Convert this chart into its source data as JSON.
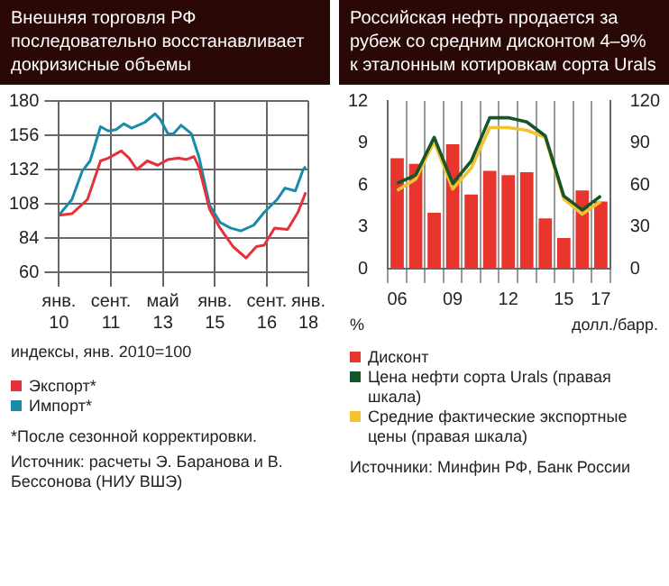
{
  "chart_data": [
    {
      "type": "line",
      "title": "Внешняя торговля РФ последовательно восстанавливает докризисные объемы",
      "annotations": [
        "индексы, янв. 2010=100",
        "*После сезонной корректировки.",
        "Источник: расчеты Э. Баранова и В. Бессонова (НИУ ВШЭ)"
      ],
      "xlim": [
        "2010-01",
        "2018-01"
      ],
      "xticks": [
        {
          "value": "2010-01",
          "label": "янв. 10"
        },
        {
          "value": "2011-09",
          "label": "сент. 11"
        },
        {
          "value": "2013-05",
          "label": "май 13"
        },
        {
          "value": "2015-01",
          "label": "янв. 15"
        },
        {
          "value": "2016-09",
          "label": "сент. 16"
        },
        {
          "value": "2018-01",
          "label": "янв. 18"
        }
      ],
      "ylim": [
        60,
        180
      ],
      "yticks": [
        60,
        84,
        108,
        132,
        156,
        180
      ],
      "grid": true,
      "legend": "bottom",
      "marker": "none",
      "series": [
        {
          "name": "Экспорт*",
          "color": "#e8303a",
          "x": [
            "2010-01",
            "2010-06",
            "2010-12",
            "2011-05",
            "2011-08",
            "2012-01",
            "2012-04",
            "2012-07",
            "2012-11",
            "2013-03",
            "2013-07",
            "2013-11",
            "2014-02",
            "2014-05",
            "2014-07",
            "2014-11",
            "2015-03",
            "2015-08",
            "2016-01",
            "2016-05",
            "2016-08",
            "2016-12",
            "2017-05",
            "2017-09",
            "2017-12"
          ],
          "values": [
            100,
            101,
            111,
            138,
            140,
            145,
            140,
            132,
            138,
            135,
            139,
            140,
            139,
            141,
            133,
            104,
            91,
            78,
            70,
            78,
            79,
            91,
            90,
            102,
            116
          ]
        },
        {
          "name": "Импорт*",
          "color": "#1a8aa8",
          "x": [
            "2010-01",
            "2010-06",
            "2010-10",
            "2011-01",
            "2011-05",
            "2011-08",
            "2011-11",
            "2012-02",
            "2012-05",
            "2012-10",
            "2013-02",
            "2013-04",
            "2013-07",
            "2013-09",
            "2013-12",
            "2014-04",
            "2014-07",
            "2014-11",
            "2015-03",
            "2015-07",
            "2015-11",
            "2016-04",
            "2016-08",
            "2017-01",
            "2017-04",
            "2017-08",
            "2017-11",
            "2017-12"
          ],
          "values": [
            100,
            111,
            131,
            138,
            162,
            159,
            160,
            164,
            161,
            165,
            171,
            167,
            157,
            157,
            163,
            157,
            140,
            107,
            95,
            91,
            89,
            93,
            102,
            111,
            119,
            117,
            132,
            134
          ]
        }
      ]
    },
    {
      "type": "bar",
      "title": "Российская нефть продается за рубеж со средним дисконтом 4–9% к эталонным котировкам сорта Urals",
      "annotations": [
        "Источники: Минфин РФ, Банк России"
      ],
      "categories": [
        "06",
        null,
        null,
        "09",
        null,
        null,
        "12",
        null,
        null,
        "15",
        null,
        "17"
      ],
      "ylabel": "%",
      "y2label": "долл./барр.",
      "ylim": [
        0,
        12
      ],
      "yticks": [
        0,
        3,
        6,
        9,
        12
      ],
      "y2lim": [
        0,
        120
      ],
      "y2ticks": [
        0,
        30,
        60,
        90,
        120
      ],
      "grid": "x",
      "legend": "bottom",
      "marker": "none",
      "series": [
        {
          "name": "Дисконт",
          "color": "#e8352e",
          "values": [
            7.9,
            7.5,
            4.0,
            8.9,
            5.3,
            7.0,
            6.7,
            6.9,
            3.6,
            2.2,
            5.6,
            4.8
          ]
        },
        {
          "name": "Цена нефти сорта Urals (правая шкала)",
          "type": "line",
          "axis": "y2",
          "color": "#14552a",
          "values": [
            61,
            67,
            94,
            61,
            77,
            108,
            108,
            105,
            95,
            52,
            42,
            52
          ]
        },
        {
          "name": "Средние фактические экспортные цены (правая шкала)",
          "type": "line",
          "axis": "y2",
          "color": "#f2c230",
          "values": [
            56,
            64,
            91,
            57,
            72,
            101,
            101,
            99,
            94,
            50,
            39,
            48
          ]
        }
      ]
    }
  ]
}
